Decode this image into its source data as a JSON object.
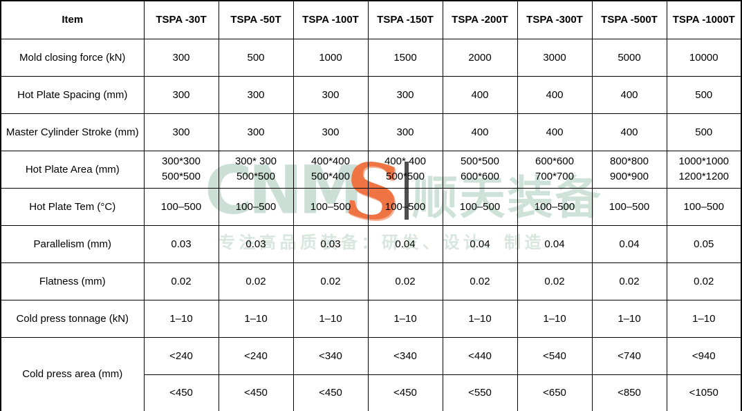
{
  "table": {
    "columns": [
      "Item",
      "TSPA -30T",
      "TSPA -50T",
      "TSPA -100T",
      "TSPA -150T",
      "TSPA -200T",
      "TSPA -300T",
      "TSPA -500T",
      "TSPA -1000T"
    ],
    "rows": [
      {
        "label": "Mold closing force (kN)",
        "values": [
          "300",
          "500",
          "1000",
          "1500",
          "2000",
          "3000",
          "5000",
          "10000"
        ]
      },
      {
        "label": "Hot Plate Spacing (mm)",
        "values": [
          "300",
          "300",
          "300",
          "300",
          "400",
          "400",
          "400",
          "500"
        ]
      },
      {
        "label": "Master Cylinder Stroke (mm)",
        "values": [
          "300",
          "300",
          "300",
          "300",
          "400",
          "400",
          "400",
          "500"
        ]
      },
      {
        "label": "Hot Plate Area (mm)",
        "line1": [
          "300*300",
          "300* 300",
          "400*400",
          "400* 400",
          "500*500",
          "600*600",
          "800*800",
          "1000*1000"
        ],
        "line2": [
          "500*500",
          "500*500",
          "500*400",
          "500*500",
          "600*600",
          "700*700",
          "900*900",
          "1200*1200"
        ]
      },
      {
        "label": "Hot Plate Tem (°C)",
        "values": [
          "100–500",
          "100–500",
          "100–500",
          "100–500",
          "100–500",
          "100–500",
          "100–500",
          "100–500"
        ]
      },
      {
        "label": "Parallelism (mm)",
        "values": [
          "0.03",
          "0.03",
          "0.03",
          "0.04",
          "0.04",
          "0.04",
          "0.04",
          "0.05"
        ]
      },
      {
        "label": "Flatness (mm)",
        "values": [
          "0.02",
          "0.02",
          "0.02",
          "0.02",
          "0.02",
          "0.02",
          "0.02",
          "0.02"
        ]
      },
      {
        "label": "Cold press tonnage (kN)",
        "values": [
          "1–10",
          "1–10",
          "1–10",
          "1–10",
          "1–10",
          "1–10",
          "1–10",
          "1–10"
        ]
      },
      {
        "label": "Cold press area (mm)",
        "values_top": [
          "<240",
          "<240",
          "<340",
          "<340",
          "<440",
          "<540",
          "<740",
          "<940"
        ],
        "values_bottom": [
          "<450",
          "<450",
          "<450",
          "<450",
          "<550",
          "<650",
          "<850",
          "<1050"
        ]
      }
    ]
  },
  "watermark": {
    "letters": "CNM",
    "s_glyph": "S",
    "cjk_name": "顺天装备",
    "tagline": "专注高品质装备：研发、设计、制造",
    "colors": {
      "teal_letters": "#cbdfd6",
      "teal_cjk": "#cfe2d9",
      "tagline": "#d8e6de",
      "orange_s": "#ee7444",
      "bar": "#4e4e4e"
    }
  }
}
